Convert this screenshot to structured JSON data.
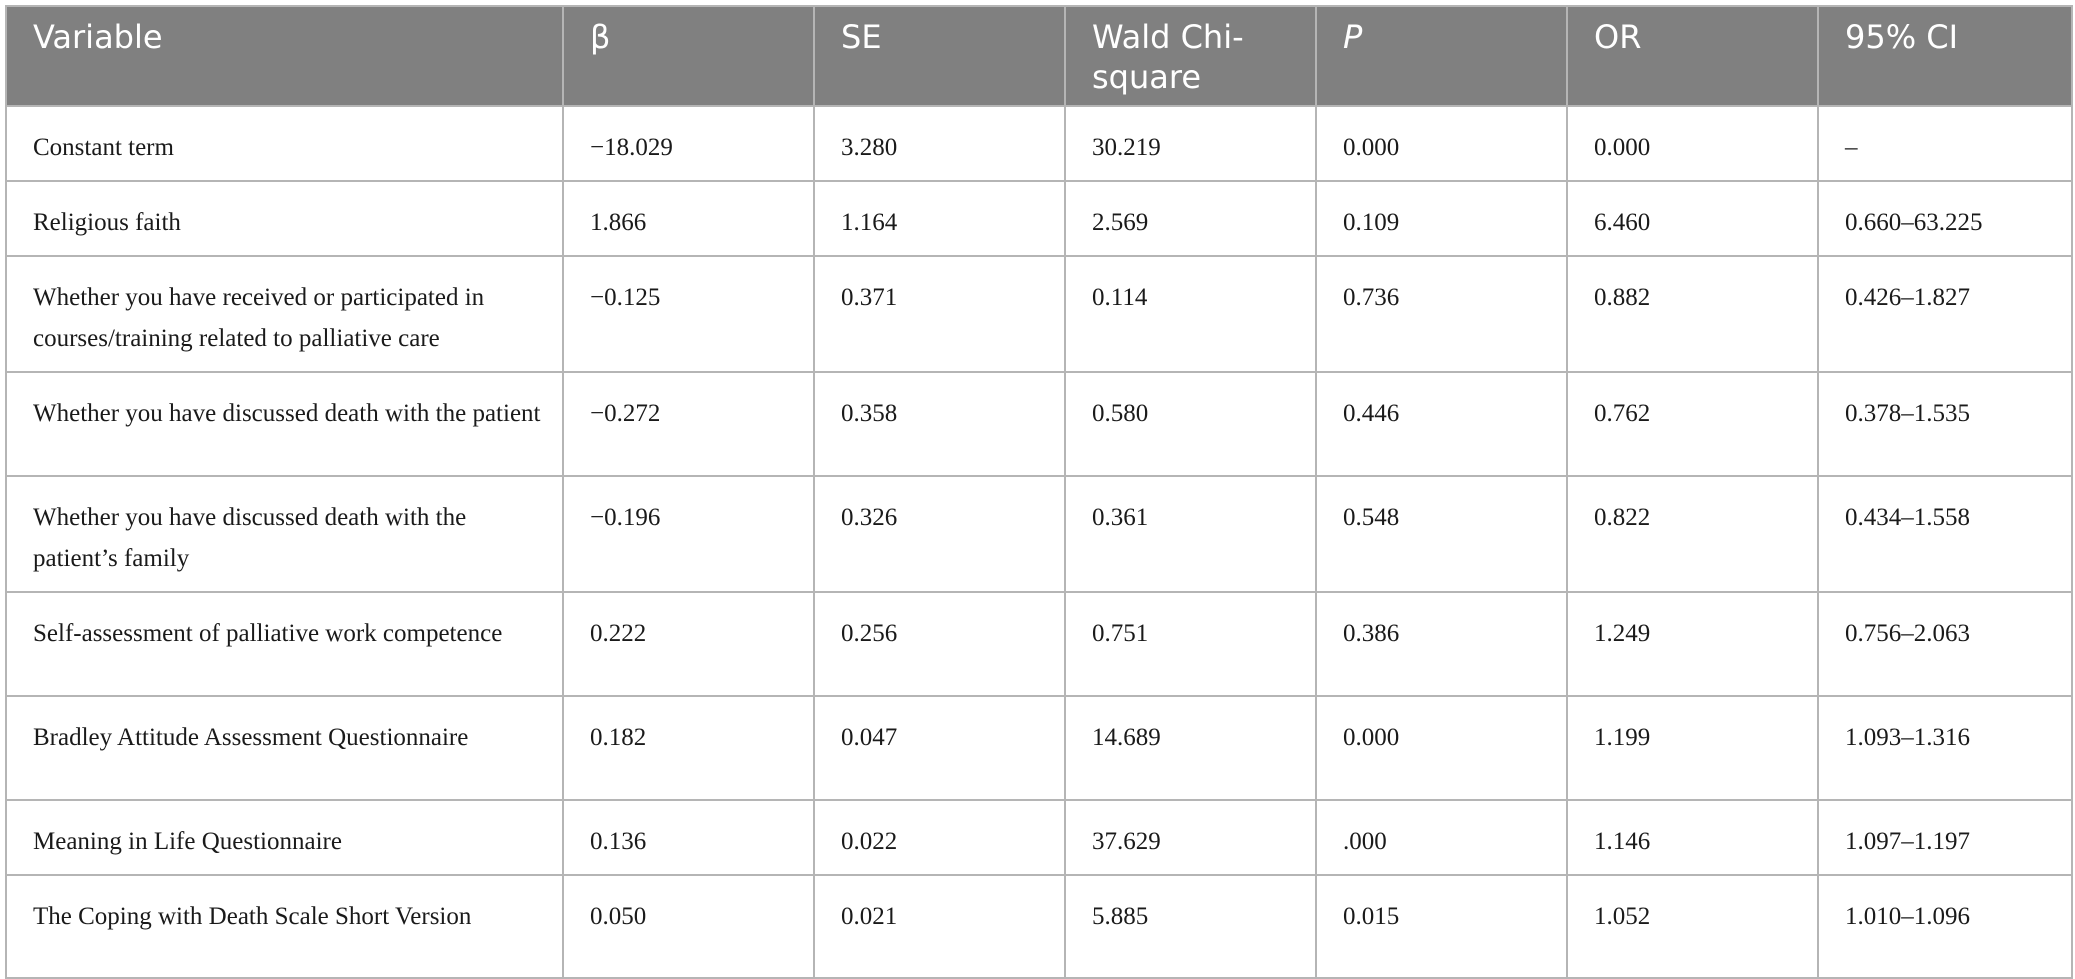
{
  "table": {
    "headers": [
      "Variable",
      "β",
      "SE",
      "Wald Chi-square",
      "P",
      "OR",
      "95% CI"
    ],
    "rows": [
      [
        "Constant term",
        "−18.029",
        "3.280",
        "30.219",
        "0.000",
        "0.000",
        "–"
      ],
      [
        "Religious faith",
        "1.866",
        "1.164",
        "2.569",
        "0.109",
        "6.460",
        "0.660–63.225"
      ],
      [
        "Whether you have received or participated in courses/training related to palliative care",
        "−0.125",
        "0.371",
        "0.114",
        "0.736",
        "0.882",
        "0.426–1.827"
      ],
      [
        "Whether you have discussed death with the patient",
        "−0.272",
        "0.358",
        "0.580",
        "0.446",
        "0.762",
        "0.378–1.535"
      ],
      [
        "Whether you have discussed death with the patient’s family",
        "−0.196",
        "0.326",
        "0.361",
        "0.548",
        "0.822",
        "0.434–1.558"
      ],
      [
        "Self-assessment of palliative work competence",
        "0.222",
        "0.256",
        "0.751",
        "0.386",
        "1.249",
        "0.756–2.063"
      ],
      [
        "Bradley Attitude Assessment Questionnaire",
        "0.182",
        "0.047",
        "14.689",
        "0.000",
        "1.199",
        "1.093–1.316"
      ],
      [
        "Meaning in Life Questionnaire",
        "0.136",
        "0.022",
        "37.629",
        ".000",
        "1.146",
        "1.097–1.197"
      ],
      [
        "The Coping with Death Scale Short Version",
        "0.050",
        "0.021",
        "5.885",
        "0.015",
        "1.052",
        "1.010–1.096"
      ]
    ]
  }
}
